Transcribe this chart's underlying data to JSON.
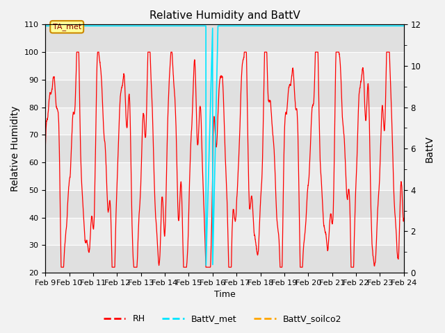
{
  "title": "Relative Humidity and BattV",
  "ylabel_left": "Relative Humidity",
  "ylabel_right": "BattV",
  "xlabel": "Time",
  "ylim_left": [
    20,
    110
  ],
  "ylim_right": [
    0,
    12
  ],
  "x_tick_labels": [
    "Feb 9",
    "Feb 10",
    "Feb 11",
    "Feb 12",
    "Feb 13",
    "Feb 14",
    "Feb 15",
    "Feb 16",
    "Feb 17",
    "Feb 18",
    "Feb 19",
    "Feb 20",
    "Feb 21",
    "Feb 22",
    "Feb 23",
    "Feb 24"
  ],
  "rh_color": "#ff0000",
  "battv_met_color": "#00e5ff",
  "battv_soilco2_color": "#ffa500",
  "annotation_text": "TA_met",
  "bg_color": "#f2f2f2",
  "band_colors": [
    "#e0e0e0",
    "#ececec"
  ],
  "grid_color": "#ffffff",
  "left_yticks": [
    20,
    30,
    40,
    50,
    60,
    70,
    80,
    90,
    100,
    110
  ],
  "right_yticks": [
    0,
    2,
    4,
    6,
    8,
    10,
    12
  ]
}
